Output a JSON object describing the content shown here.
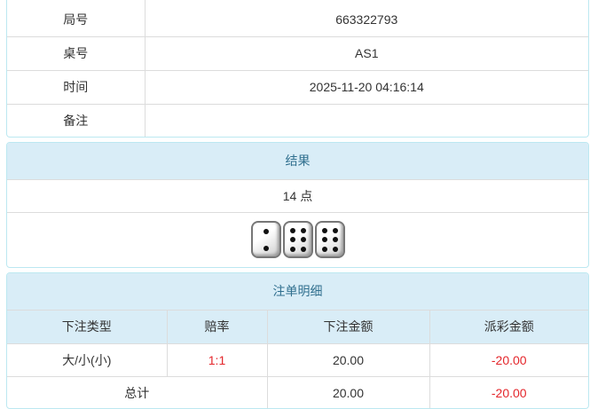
{
  "info": {
    "rows": [
      {
        "label": "局号",
        "value": "663322793"
      },
      {
        "label": "桌号",
        "value": "AS1"
      },
      {
        "label": "时间",
        "value": "2025-11-20 04:16:14"
      },
      {
        "label": "备注",
        "value": ""
      }
    ]
  },
  "result": {
    "title": "结果",
    "points": "14 点",
    "dice": [
      2,
      6,
      6
    ]
  },
  "bets": {
    "title": "注单明细",
    "columns": [
      "下注类型",
      "赔率",
      "下注金额",
      "派彩金额"
    ],
    "rows": [
      {
        "type": "大/小(小)",
        "odds": "1:1",
        "amount": "20.00",
        "payout": "-20.00"
      }
    ],
    "total": {
      "label": "总计",
      "amount": "20.00",
      "payout": "-20.00"
    }
  },
  "colors": {
    "header_bg": "#d9edf7",
    "header_text": "#31708f",
    "negative": "#e4262b",
    "border": "#bce8f1"
  }
}
